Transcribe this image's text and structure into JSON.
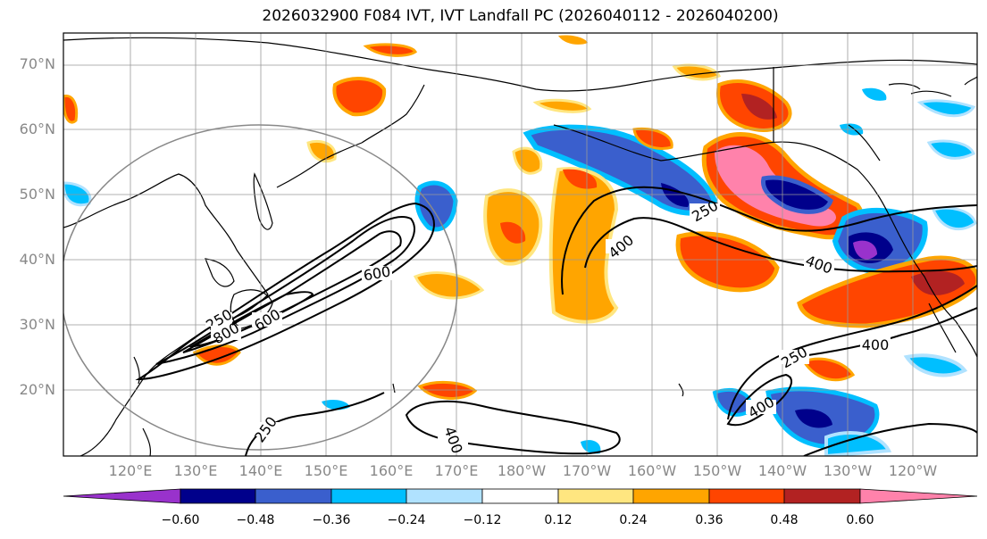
{
  "title": "2026032900 F084 IVT, IVT Landfall PC (2026040112 - 2026040200)",
  "lat_labels": [
    "70°N",
    "60°N",
    "50°N",
    "40°N",
    "30°N",
    "20°N"
  ],
  "lon_labels": [
    "120°E",
    "130°E",
    "140°E",
    "150°E",
    "160°E",
    "170°E",
    "180°W",
    "170°W",
    "160°W",
    "150°W",
    "140°W",
    "130°W",
    "120°W"
  ],
  "contour_labels": [
    "250",
    "250",
    "250",
    "250",
    "400",
    "400",
    "400",
    "400",
    "400",
    "600",
    "600",
    "800"
  ],
  "colorbar": {
    "ticks": [
      "−0.60",
      "−0.48",
      "−0.36",
      "−0.24",
      "−0.12",
      "0.12",
      "0.24",
      "0.36",
      "0.48",
      "0.60"
    ],
    "colors": [
      "#9932cc",
      "#00008b",
      "#3a5fcd",
      "#00bfff",
      "#b0e2ff",
      "#ffffff",
      "#ffe680",
      "#ffa500",
      "#ff4500",
      "#b22222",
      "#ff82ab",
      "#ff82ab"
    ]
  }
}
